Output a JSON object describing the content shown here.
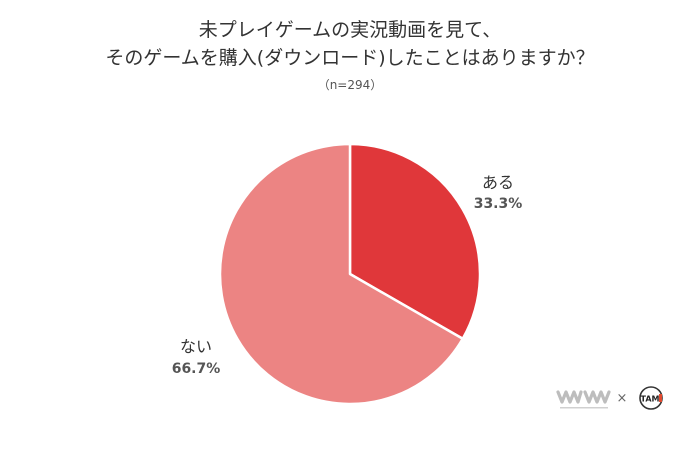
{
  "chart_data": {
    "type": "pie",
    "title_lines": [
      "未プレイゲームの実況動画を見て、",
      "そのゲームを購入(ダウンロード)したことはありますか？"
    ],
    "subtitle": "（n=294）",
    "slices": [
      {
        "label": "ある",
        "value": 33.3,
        "value_text": "33.3%",
        "color": "#e0373a"
      },
      {
        "label": "ない",
        "value": 66.7,
        "value_text": "66.7%",
        "color": "#ec8483"
      }
    ],
    "start_angle_deg": 0,
    "direction": "clockwise",
    "legend": "none"
  },
  "footer": {
    "times": "×",
    "logo_left_icon": "waves-logo-icon",
    "logo_right_icon": "tam-logo-icon",
    "logo_right_text": "TAM"
  }
}
